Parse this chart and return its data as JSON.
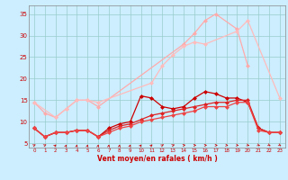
{
  "background_color": "#cceeff",
  "grid_color": "#99cccc",
  "xlabel": "Vent moyen/en rafales ( km/h )",
  "xlim": [
    -0.5,
    23.5
  ],
  "ylim": [
    4.0,
    37.0
  ],
  "yticks": [
    5,
    10,
    15,
    20,
    25,
    30,
    35
  ],
  "xticks": [
    0,
    1,
    2,
    3,
    4,
    5,
    6,
    7,
    8,
    9,
    10,
    11,
    12,
    13,
    14,
    15,
    16,
    17,
    18,
    19,
    20,
    21,
    22,
    23
  ],
  "series": [
    {
      "name": "s1_light",
      "x": [
        0,
        1,
        2,
        3,
        4,
        5,
        6,
        14,
        15,
        16,
        17,
        19,
        20
      ],
      "y": [
        14.5,
        12.0,
        11.0,
        13.0,
        15.0,
        15.0,
        13.5,
        28.0,
        30.5,
        33.5,
        35.0,
        31.5,
        23.0
      ],
      "color": "#ffaaaa",
      "lw": 0.9,
      "ms": 2.5
    },
    {
      "name": "s2_light2",
      "x": [
        0,
        2,
        3,
        4,
        5,
        6,
        11,
        12,
        13,
        14,
        15,
        16,
        19,
        20,
        23
      ],
      "y": [
        14.5,
        11.0,
        13.0,
        15.0,
        15.0,
        14.5,
        19.0,
        23.0,
        25.5,
        27.5,
        28.5,
        28.0,
        31.0,
        33.5,
        15.5
      ],
      "color": "#ffbbbb",
      "lw": 0.9,
      "ms": 2.5
    },
    {
      "name": "s3_dark_bump",
      "x": [
        0,
        1,
        2,
        3,
        4,
        5,
        6,
        7,
        8,
        9,
        10,
        11,
        12,
        13,
        14,
        15,
        16,
        17,
        18,
        19,
        20,
        21,
        22,
        23
      ],
      "y": [
        8.5,
        6.5,
        7.5,
        7.5,
        8.0,
        8.0,
        6.5,
        8.5,
        9.5,
        10.0,
        16.0,
        15.5,
        13.5,
        13.0,
        13.5,
        15.5,
        17.0,
        16.5,
        15.5,
        15.5,
        14.5,
        8.5,
        7.5,
        7.5
      ],
      "color": "#cc0000",
      "lw": 0.9,
      "ms": 2.5
    },
    {
      "name": "s4_red_rise",
      "x": [
        0,
        1,
        2,
        3,
        4,
        5,
        6,
        7,
        8,
        9,
        10,
        11,
        12,
        13,
        14,
        15,
        16,
        17,
        18,
        19,
        20,
        21,
        22,
        23
      ],
      "y": [
        8.5,
        6.5,
        7.5,
        7.5,
        8.0,
        8.0,
        6.5,
        8.0,
        9.0,
        9.5,
        10.5,
        11.5,
        12.0,
        12.5,
        13.0,
        13.5,
        14.0,
        14.5,
        14.5,
        15.0,
        15.0,
        8.5,
        7.5,
        7.5
      ],
      "color": "#dd2222",
      "lw": 0.9,
      "ms": 2.5
    },
    {
      "name": "s5_red_rise2",
      "x": [
        0,
        1,
        2,
        3,
        4,
        5,
        6,
        7,
        8,
        9,
        10,
        11,
        12,
        13,
        14,
        15,
        16,
        17,
        18,
        19,
        20,
        21,
        22,
        23
      ],
      "y": [
        8.5,
        6.5,
        7.5,
        7.5,
        8.0,
        8.0,
        6.5,
        7.5,
        8.5,
        9.0,
        10.0,
        10.5,
        11.0,
        11.5,
        12.0,
        12.5,
        13.5,
        13.5,
        13.5,
        14.5,
        14.5,
        8.0,
        7.5,
        7.5
      ],
      "color": "#ee4444",
      "lw": 0.9,
      "ms": 2.5
    }
  ],
  "wind_angles": [
    225,
    225,
    205,
    190,
    185,
    185,
    185,
    185,
    185,
    190,
    200,
    210,
    220,
    230,
    250,
    265,
    265,
    275,
    290,
    300,
    310,
    315,
    320,
    320
  ]
}
